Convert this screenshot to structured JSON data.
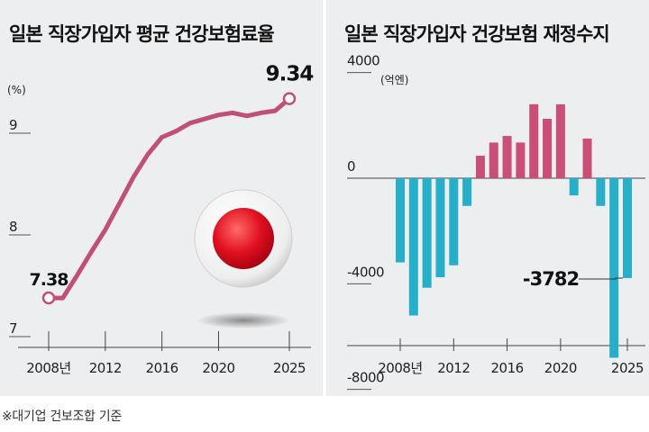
{
  "colors": {
    "panel_bg": "#edeef0",
    "line": "#c0507a",
    "positive_bar": "#c94f76",
    "negative_bar": "#27afc9",
    "japan_flag_red": "#e01020"
  },
  "footnote": "※대기업 건보조합 기준",
  "chart_data": [
    {
      "type": "line",
      "title": "일본 직장가입자 평균 건강보험료율",
      "ylabel": "(%)",
      "ylim": [
        7,
        9.4
      ],
      "yticks": [
        7,
        8,
        9
      ],
      "ytick_labels": [
        "7",
        "8",
        "9"
      ],
      "xlim": [
        2008,
        2025
      ],
      "xticks": [
        2008,
        2012,
        2016,
        2020,
        2025
      ],
      "xtick_labels": [
        "2008년",
        "2012",
        "2016",
        "2020",
        "2025"
      ],
      "x": [
        2008,
        2009,
        2010,
        2011,
        2012,
        2013,
        2014,
        2015,
        2016,
        2017,
        2018,
        2019,
        2020,
        2021,
        2022,
        2023,
        2024,
        2025
      ],
      "values": [
        7.38,
        7.38,
        7.6,
        7.83,
        8.05,
        8.31,
        8.57,
        8.79,
        8.96,
        9.02,
        9.1,
        9.14,
        9.18,
        9.2,
        9.17,
        9.2,
        9.22,
        9.34
      ],
      "annotations": [
        {
          "x": 2008,
          "label": "7.38"
        },
        {
          "x": 2025,
          "label": "9.34"
        }
      ],
      "icon": "japan-flag-badge-icon"
    },
    {
      "type": "bar",
      "title": "일본 직장가입자 건강보험 재정수지",
      "ylabel": "(억엔)",
      "ylim": [
        -8000,
        4000
      ],
      "yticks": [
        4000,
        0,
        -4000,
        -8000
      ],
      "ytick_labels": [
        "4000",
        "0",
        "-4000",
        "-8000"
      ],
      "xlim": [
        2008,
        2025
      ],
      "xticks": [
        2008,
        2012,
        2016,
        2020,
        2025
      ],
      "xtick_labels": [
        "2008년",
        "2012",
        "2016",
        "2020",
        "2025"
      ],
      "categories": [
        2008,
        2009,
        2010,
        2011,
        2012,
        2013,
        2014,
        2015,
        2016,
        2017,
        2018,
        2019,
        2020,
        2021,
        2022,
        2023,
        2024,
        2025
      ],
      "values": [
        -3190,
        -5200,
        -4150,
        -3750,
        -3300,
        -1050,
        850,
        1350,
        1600,
        1350,
        2800,
        2250,
        2800,
        -650,
        1500,
        -1050,
        -6800,
        -3782
      ],
      "annotations": [
        {
          "x": 2025,
          "label": "-3782"
        }
      ]
    }
  ]
}
